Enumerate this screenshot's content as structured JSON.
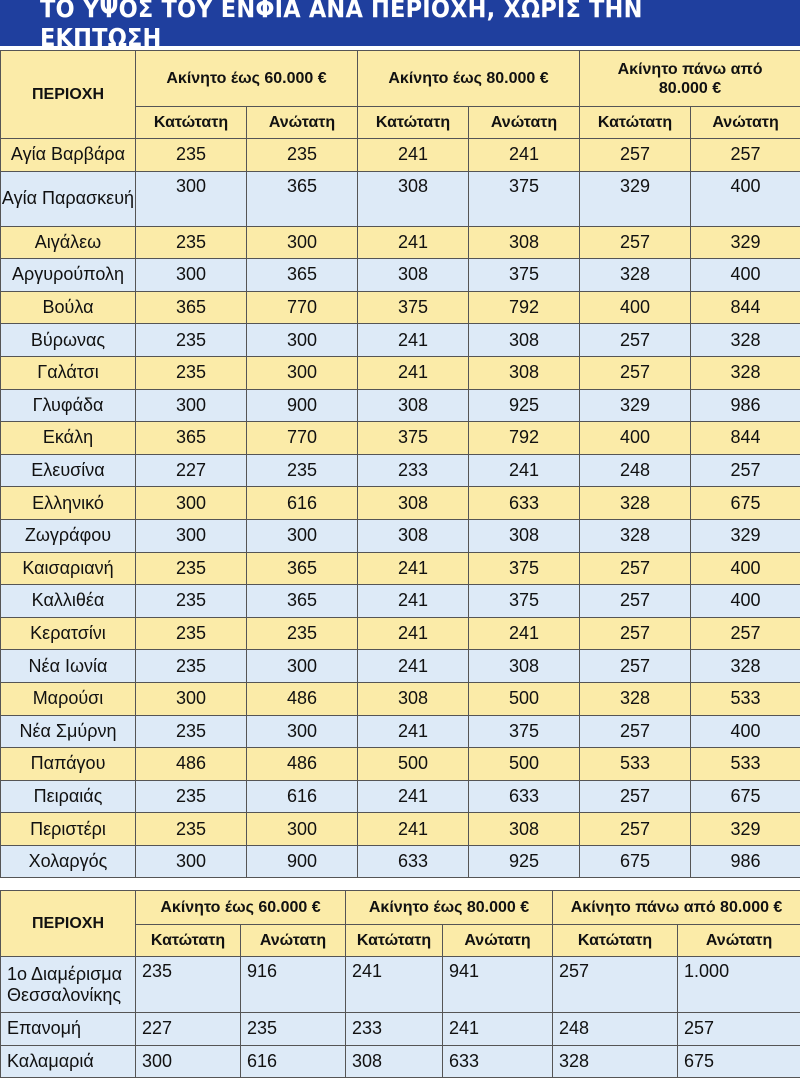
{
  "title": "ΤΟ ΥΨΟΣ ΤΟΥ ΕΝΦΙΑ ΑΝΑ ΠΕΡΙΟΧΗ, ΧΩΡΙΣ ΤΗΝ ΕΚΠΤΩΣΗ",
  "table1": {
    "region_header": "ΠΕΡΙΟΧΗ",
    "groups": [
      "Ακίνητο έως 60.000 €",
      "Ακίνητο έως 80.000 €",
      "Ακίνητο πάνω από 80.000 €"
    ],
    "sub_min": "Κατώτατη",
    "sub_max": "Ανώτατη",
    "rows": [
      {
        "region": "Αγία Βαρβάρα",
        "v": [
          "235",
          "235",
          "241",
          "241",
          "257",
          "257"
        ]
      },
      {
        "region": "Αγία Παρασκευή",
        "v": [
          "300",
          "365",
          "308",
          "375",
          "329",
          "400"
        ]
      },
      {
        "region": "Αιγάλεω",
        "v": [
          "235",
          "300",
          "241",
          "308",
          "257",
          "329"
        ]
      },
      {
        "region": "Αργυρούπολη",
        "v": [
          "300",
          "365",
          "308",
          "375",
          "328",
          "400"
        ]
      },
      {
        "region": "Βούλα",
        "v": [
          "365",
          "770",
          "375",
          "792",
          "400",
          "844"
        ]
      },
      {
        "region": "Βύρωνας",
        "v": [
          "235",
          "300",
          "241",
          "308",
          "257",
          "328"
        ]
      },
      {
        "region": "Γαλάτσι",
        "v": [
          "235",
          "300",
          "241",
          "308",
          "257",
          "328"
        ]
      },
      {
        "region": "Γλυφάδα",
        "v": [
          "300",
          "900",
          "308",
          "925",
          "329",
          "986"
        ]
      },
      {
        "region": "Εκάλη",
        "v": [
          "365",
          "770",
          "375",
          "792",
          "400",
          "844"
        ]
      },
      {
        "region": "Ελευσίνα",
        "v": [
          "227",
          "235",
          "233",
          "241",
          "248",
          "257"
        ]
      },
      {
        "region": "Ελληνικό",
        "v": [
          "300",
          "616",
          "308",
          "633",
          "328",
          "675"
        ]
      },
      {
        "region": "Ζωγράφου",
        "v": [
          "300",
          "300",
          "308",
          "308",
          "328",
          "329"
        ]
      },
      {
        "region": "Καισαριανή",
        "v": [
          "235",
          "365",
          "241",
          "375",
          "257",
          "400"
        ]
      },
      {
        "region": "Καλλιθέα",
        "v": [
          "235",
          "365",
          "241",
          "375",
          "257",
          "400"
        ]
      },
      {
        "region": "Κερατσίνι",
        "v": [
          "235",
          "235",
          "241",
          "241",
          "257",
          "257"
        ]
      },
      {
        "region": "Νέα Ιωνία",
        "v": [
          "235",
          "300",
          "241",
          "308",
          "257",
          "328"
        ]
      },
      {
        "region": "Μαρούσι",
        "v": [
          "300",
          "486",
          "308",
          "500",
          "328",
          "533"
        ]
      },
      {
        "region": "Νέα Σμύρνη",
        "v": [
          "235",
          "300",
          "241",
          "375",
          "257",
          "400"
        ]
      },
      {
        "region": "Παπάγου",
        "v": [
          "486",
          "486",
          "500",
          "500",
          "533",
          "533"
        ]
      },
      {
        "region": "Πειραιάς",
        "v": [
          "235",
          "616",
          "241",
          "633",
          "257",
          "675"
        ]
      },
      {
        "region": "Περιστέρι",
        "v": [
          "235",
          "300",
          "241",
          "308",
          "257",
          "329"
        ]
      },
      {
        "region": "Χολαργός",
        "v": [
          "300",
          "900",
          "633",
          "925",
          "675",
          "986"
        ]
      }
    ]
  },
  "table2": {
    "region_header": "ΠΕΡΙΟΧΗ",
    "groups": [
      "Ακίνητο έως 60.000 €",
      "Ακίνητο έως 80.000 €",
      "Ακίνητο πάνω από 80.000 €"
    ],
    "sub_min": "Κατώτατη",
    "sub_max": "Ανώτατη",
    "rows": [
      {
        "region": "1ο Διαμέρισμα Θεσσαλονίκης",
        "v": [
          "235",
          "916",
          "241",
          "941",
          "257",
          "1.000"
        ]
      },
      {
        "region": "Επανομή",
        "v": [
          "227",
          "235",
          "233",
          "241",
          "248",
          "257"
        ]
      },
      {
        "region": "Καλαμαριά",
        "v": [
          "300",
          "616",
          "308",
          "633",
          "328",
          "675"
        ]
      }
    ]
  }
}
